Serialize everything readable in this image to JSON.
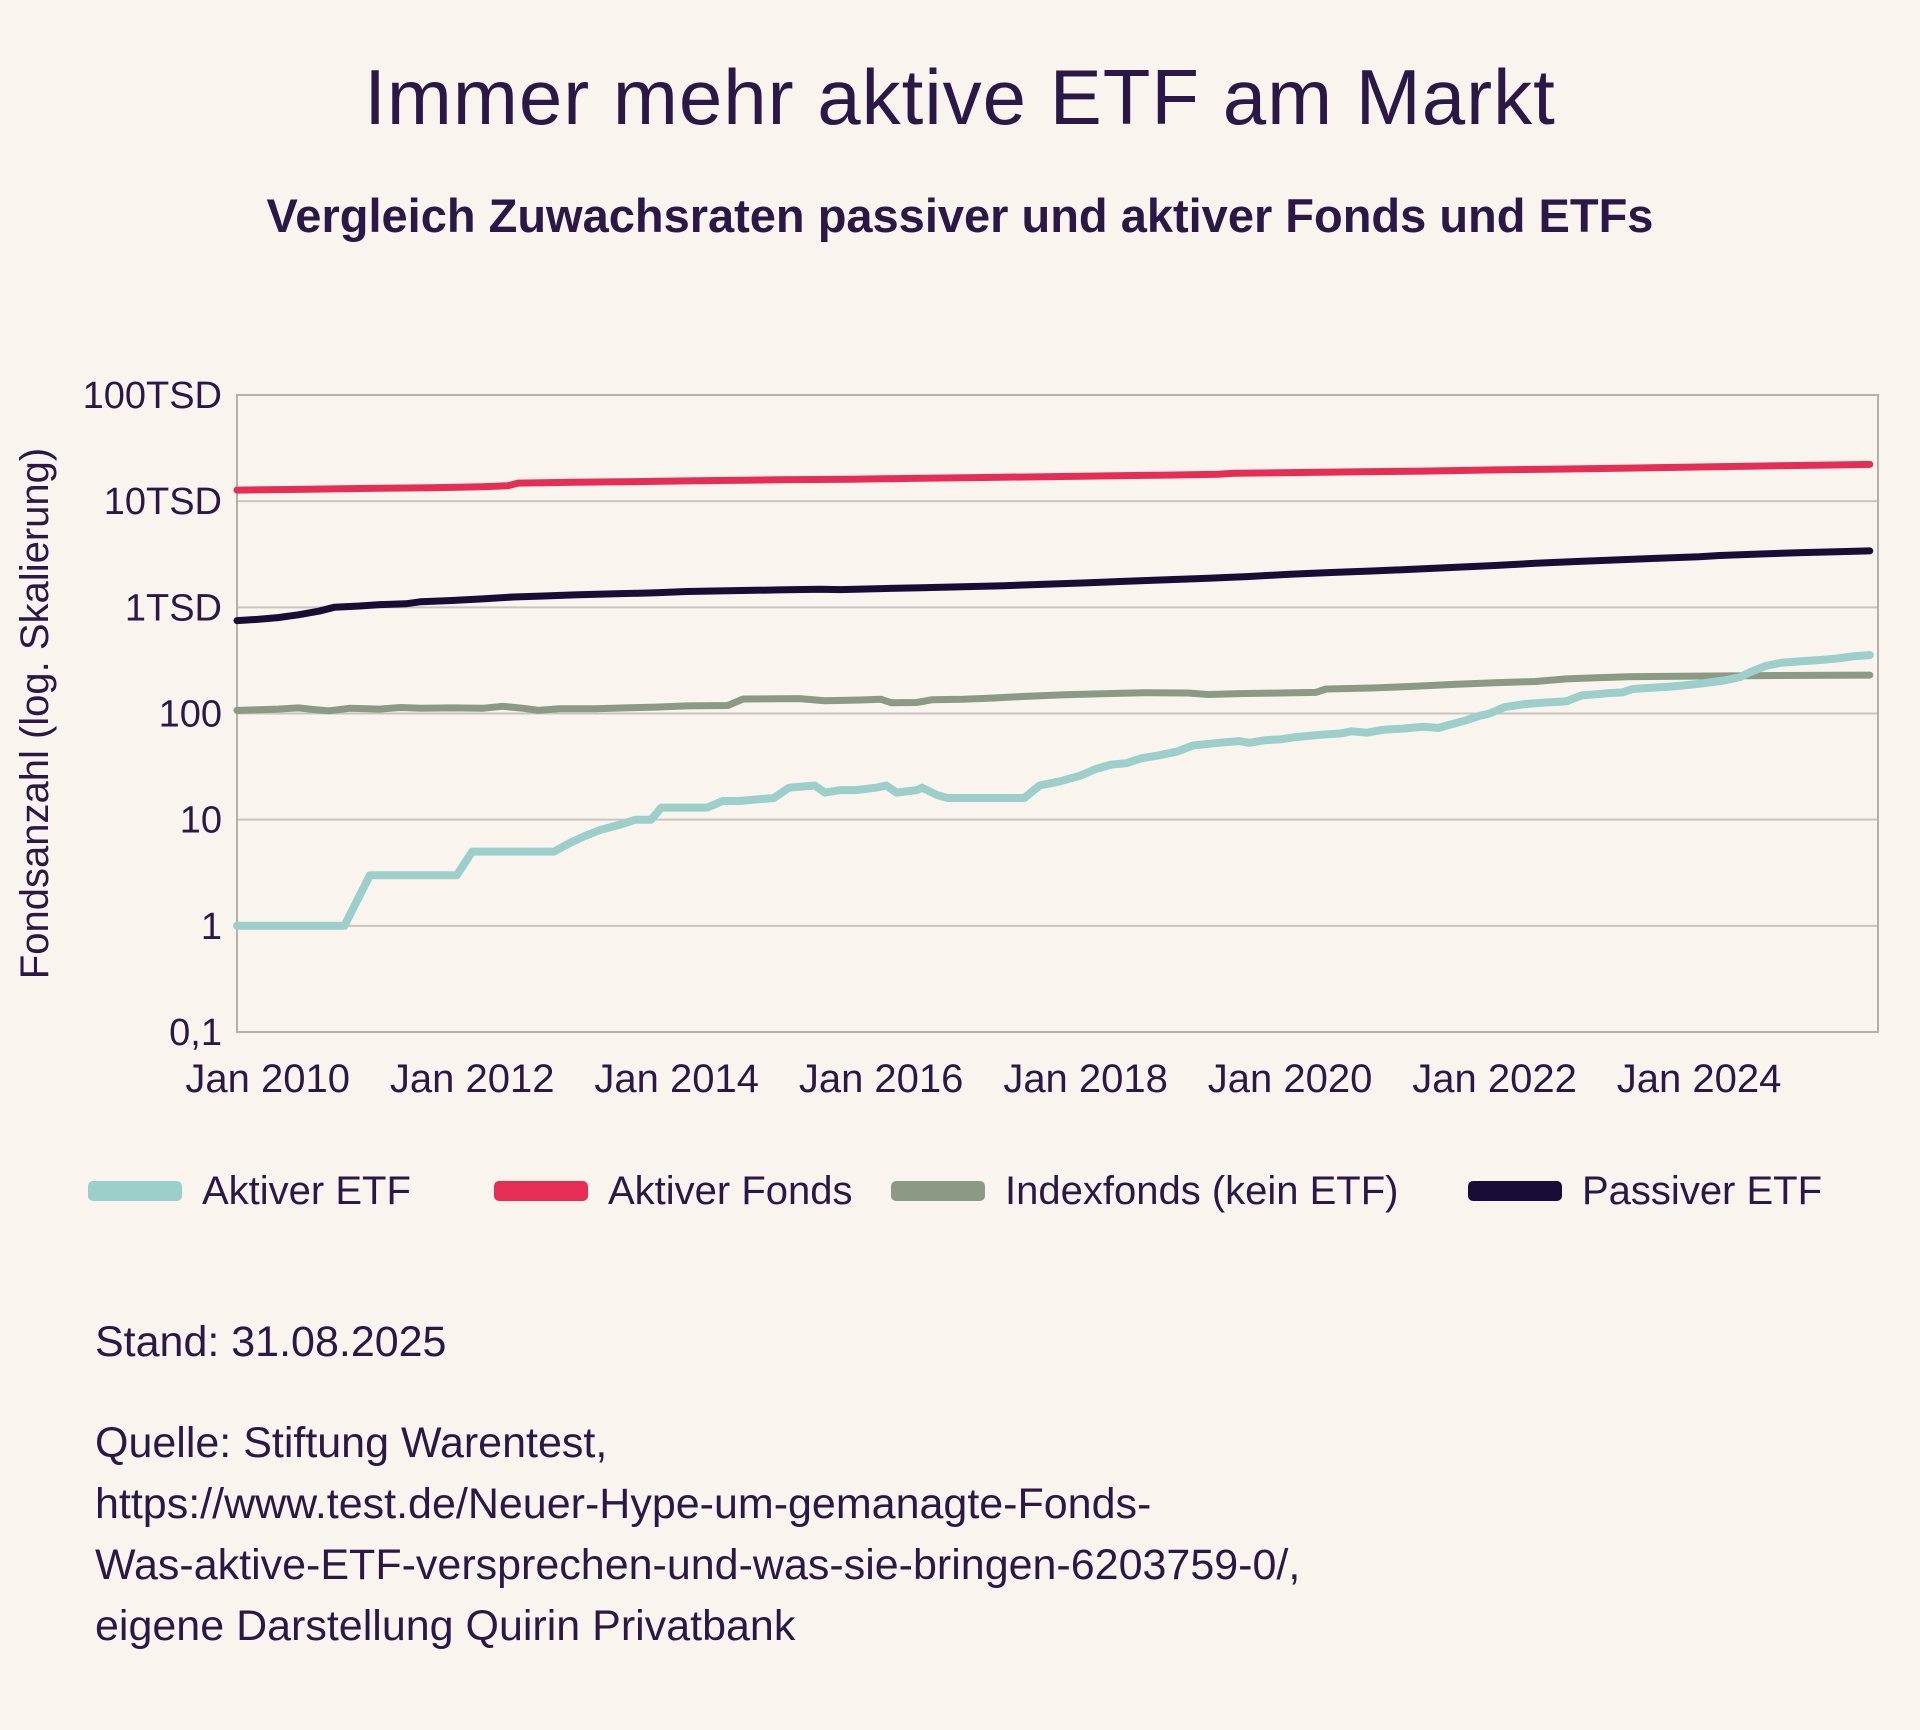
{
  "header": {
    "title": "Immer mehr aktive ETF am Markt",
    "subtitle": "Vergleich Zuwachsraten passiver und aktiver Fonds und ETFs"
  },
  "colors": {
    "background": "#faf4ee",
    "text": "#2a1947",
    "gridline": "#c9c4c1",
    "aktiver_etf": "#9ccfca",
    "aktiver_fonds": "#e62d55",
    "indexfonds": "#8b9a85",
    "passiver_etf": "#190d38"
  },
  "chart_data": {
    "type": "line",
    "title": "Immer mehr aktive ETF am Markt",
    "subtitle": "Vergleich Zuwachsraten passiver und aktiver Fonds und ETFs",
    "xlabel": "",
    "ylabel": "Fondsanzahl (log. Skalierung)",
    "y_scale": "log",
    "grid": true,
    "legend_position": "bottom",
    "x_domain": [
      2009.7,
      2025.75
    ],
    "y_domain": [
      0.1,
      100000
    ],
    "y_ticks": [
      {
        "label": "100TSD",
        "value": 100000
      },
      {
        "label": "10TSD",
        "value": 10000
      },
      {
        "label": "1TSD",
        "value": 1000
      },
      {
        "label": "100",
        "value": 100
      },
      {
        "label": "10",
        "value": 10
      },
      {
        "label": "1",
        "value": 1
      },
      {
        "label": "0,1",
        "value": 0.1
      }
    ],
    "x_ticks": [
      {
        "label": "Jan 2010",
        "year": 2010
      },
      {
        "label": "Jan 2012",
        "year": 2012
      },
      {
        "label": "Jan 2014",
        "year": 2014
      },
      {
        "label": "Jan 2016",
        "year": 2016
      },
      {
        "label": "Jan 2018",
        "year": 2018
      },
      {
        "label": "Jan 2020",
        "year": 2020
      },
      {
        "label": "Jan 2022",
        "year": 2022
      },
      {
        "label": "Jan 2024",
        "year": 2024
      }
    ],
    "series": [
      {
        "name": "Aktiver Fonds",
        "color": "#e62d55",
        "width": 7,
        "points": [
          [
            2009.7,
            12700
          ],
          [
            2010.3,
            12900
          ],
          [
            2011.0,
            13200
          ],
          [
            2011.6,
            13400
          ],
          [
            2012.1,
            13700
          ],
          [
            2012.35,
            14000
          ],
          [
            2012.45,
            14800
          ],
          [
            2013.0,
            15100
          ],
          [
            2013.6,
            15300
          ],
          [
            2014.2,
            15600
          ],
          [
            2015.0,
            15900
          ],
          [
            2015.7,
            16100
          ],
          [
            2016.3,
            16400
          ],
          [
            2017.0,
            16700
          ],
          [
            2017.6,
            17000
          ],
          [
            2018.2,
            17300
          ],
          [
            2018.8,
            17600
          ],
          [
            2019.3,
            17900
          ],
          [
            2019.45,
            18300
          ],
          [
            2020.0,
            18600
          ],
          [
            2020.7,
            18900
          ],
          [
            2021.3,
            19200
          ],
          [
            2022.0,
            19700
          ],
          [
            2022.7,
            20100
          ],
          [
            2023.3,
            20500
          ],
          [
            2024.0,
            21000
          ],
          [
            2024.7,
            21500
          ],
          [
            2025.3,
            21900
          ],
          [
            2025.67,
            22200
          ]
        ]
      },
      {
        "name": "Passiver ETF",
        "color": "#190d38",
        "width": 7,
        "points": [
          [
            2009.7,
            750
          ],
          [
            2009.9,
            770
          ],
          [
            2010.1,
            800
          ],
          [
            2010.3,
            850
          ],
          [
            2010.5,
            920
          ],
          [
            2010.65,
            1000
          ],
          [
            2010.9,
            1030
          ],
          [
            2011.1,
            1060
          ],
          [
            2011.35,
            1080
          ],
          [
            2011.5,
            1130
          ],
          [
            2011.8,
            1160
          ],
          [
            2012.1,
            1200
          ],
          [
            2012.4,
            1250
          ],
          [
            2012.7,
            1280
          ],
          [
            2013.0,
            1310
          ],
          [
            2013.4,
            1340
          ],
          [
            2013.8,
            1370
          ],
          [
            2014.1,
            1410
          ],
          [
            2014.5,
            1430
          ],
          [
            2015.0,
            1460
          ],
          [
            2015.4,
            1480
          ],
          [
            2015.6,
            1470
          ],
          [
            2016.0,
            1500
          ],
          [
            2016.4,
            1530
          ],
          [
            2016.8,
            1560
          ],
          [
            2017.2,
            1600
          ],
          [
            2017.6,
            1650
          ],
          [
            2018.0,
            1700
          ],
          [
            2018.4,
            1760
          ],
          [
            2018.8,
            1820
          ],
          [
            2019.2,
            1880
          ],
          [
            2019.6,
            1950
          ],
          [
            2020.0,
            2050
          ],
          [
            2020.4,
            2130
          ],
          [
            2020.8,
            2200
          ],
          [
            2021.2,
            2280
          ],
          [
            2021.6,
            2380
          ],
          [
            2022.0,
            2480
          ],
          [
            2022.4,
            2600
          ],
          [
            2022.8,
            2700
          ],
          [
            2023.2,
            2800
          ],
          [
            2023.6,
            2900
          ],
          [
            2024.0,
            3000
          ],
          [
            2024.2,
            3080
          ],
          [
            2024.6,
            3180
          ],
          [
            2025.0,
            3280
          ],
          [
            2025.3,
            3330
          ],
          [
            2025.67,
            3400
          ]
        ]
      },
      {
        "name": "Indexfonds (kein ETF)",
        "color": "#8b9a85",
        "width": 7,
        "points": [
          [
            2009.7,
            107
          ],
          [
            2010.1,
            110
          ],
          [
            2010.3,
            113
          ],
          [
            2010.45,
            109
          ],
          [
            2010.6,
            106
          ],
          [
            2010.8,
            112
          ],
          [
            2011.1,
            110
          ],
          [
            2011.3,
            114
          ],
          [
            2011.5,
            112
          ],
          [
            2011.8,
            113
          ],
          [
            2012.1,
            112
          ],
          [
            2012.3,
            117
          ],
          [
            2012.5,
            112
          ],
          [
            2012.65,
            107
          ],
          [
            2012.85,
            111
          ],
          [
            2013.2,
            111
          ],
          [
            2013.5,
            113
          ],
          [
            2013.8,
            115
          ],
          [
            2014.1,
            118
          ],
          [
            2014.5,
            119
          ],
          [
            2014.65,
            137
          ],
          [
            2015.2,
            138
          ],
          [
            2015.45,
            132
          ],
          [
            2015.8,
            134
          ],
          [
            2016.0,
            136
          ],
          [
            2016.1,
            126
          ],
          [
            2016.35,
            127
          ],
          [
            2016.5,
            135
          ],
          [
            2016.8,
            136
          ],
          [
            2017.1,
            140
          ],
          [
            2017.4,
            145
          ],
          [
            2017.8,
            150
          ],
          [
            2018.2,
            154
          ],
          [
            2018.6,
            157
          ],
          [
            2019.0,
            156
          ],
          [
            2019.2,
            151
          ],
          [
            2019.5,
            154
          ],
          [
            2019.9,
            156
          ],
          [
            2020.25,
            158
          ],
          [
            2020.35,
            170
          ],
          [
            2020.8,
            174
          ],
          [
            2021.2,
            180
          ],
          [
            2021.6,
            188
          ],
          [
            2022.0,
            195
          ],
          [
            2022.4,
            200
          ],
          [
            2022.7,
            212
          ],
          [
            2023.0,
            217
          ],
          [
            2023.3,
            222
          ],
          [
            2023.8,
            224
          ],
          [
            2024.3,
            226
          ],
          [
            2024.8,
            228
          ],
          [
            2025.3,
            229
          ],
          [
            2025.67,
            230
          ]
        ]
      },
      {
        "name": "Aktiver ETF",
        "color": "#9ccfca",
        "width": 8,
        "points": [
          [
            2009.7,
            1
          ],
          [
            2010.75,
            1
          ],
          [
            2011.0,
            3
          ],
          [
            2011.85,
            3
          ],
          [
            2012.0,
            5
          ],
          [
            2012.8,
            5
          ],
          [
            2012.95,
            6
          ],
          [
            2013.1,
            7
          ],
          [
            2013.25,
            8
          ],
          [
            2013.45,
            9
          ],
          [
            2013.6,
            10
          ],
          [
            2013.75,
            10
          ],
          [
            2013.85,
            13
          ],
          [
            2014.3,
            13
          ],
          [
            2014.45,
            15
          ],
          [
            2014.6,
            15
          ],
          [
            2014.95,
            16
          ],
          [
            2015.1,
            20
          ],
          [
            2015.35,
            21
          ],
          [
            2015.45,
            18
          ],
          [
            2015.6,
            19
          ],
          [
            2015.75,
            19
          ],
          [
            2015.95,
            20
          ],
          [
            2016.05,
            21
          ],
          [
            2016.15,
            18
          ],
          [
            2016.35,
            19
          ],
          [
            2016.4,
            20
          ],
          [
            2016.55,
            17
          ],
          [
            2016.65,
            16
          ],
          [
            2017.4,
            16
          ],
          [
            2017.55,
            21
          ],
          [
            2017.75,
            23
          ],
          [
            2017.95,
            26
          ],
          [
            2018.1,
            30
          ],
          [
            2018.25,
            33
          ],
          [
            2018.4,
            34
          ],
          [
            2018.55,
            38
          ],
          [
            2018.7,
            40
          ],
          [
            2018.9,
            44
          ],
          [
            2019.05,
            50
          ],
          [
            2019.3,
            53
          ],
          [
            2019.5,
            55
          ],
          [
            2019.6,
            53
          ],
          [
            2019.75,
            56
          ],
          [
            2019.9,
            57
          ],
          [
            2020.05,
            60
          ],
          [
            2020.3,
            63
          ],
          [
            2020.5,
            65
          ],
          [
            2020.6,
            68
          ],
          [
            2020.75,
            66
          ],
          [
            2020.9,
            70
          ],
          [
            2021.1,
            72
          ],
          [
            2021.3,
            75
          ],
          [
            2021.45,
            73
          ],
          [
            2021.55,
            78
          ],
          [
            2021.7,
            85
          ],
          [
            2021.85,
            95
          ],
          [
            2021.95,
            100
          ],
          [
            2022.1,
            115
          ],
          [
            2022.3,
            123
          ],
          [
            2022.5,
            127
          ],
          [
            2022.7,
            130
          ],
          [
            2022.85,
            148
          ],
          [
            2023.1,
            155
          ],
          [
            2023.25,
            158
          ],
          [
            2023.35,
            170
          ],
          [
            2023.55,
            175
          ],
          [
            2023.75,
            180
          ],
          [
            2023.95,
            188
          ],
          [
            2024.1,
            196
          ],
          [
            2024.25,
            205
          ],
          [
            2024.4,
            220
          ],
          [
            2024.5,
            245
          ],
          [
            2024.65,
            280
          ],
          [
            2024.8,
            300
          ],
          [
            2025.0,
            310
          ],
          [
            2025.2,
            320
          ],
          [
            2025.35,
            330
          ],
          [
            2025.5,
            345
          ],
          [
            2025.67,
            355
          ]
        ]
      }
    ]
  },
  "legend": {
    "items": [
      {
        "label": "Aktiver ETF",
        "color": "#9ccfca"
      },
      {
        "label": "Aktiver Fonds",
        "color": "#e62d55"
      },
      {
        "label": "Indexfonds (kein ETF)",
        "color": "#8b9a85"
      },
      {
        "label": "Passiver ETF",
        "color": "#190d38"
      }
    ]
  },
  "footer": {
    "stand": "Stand: 31.08.2025",
    "source_lines": [
      "Quelle: Stiftung Warentest,",
      "https://www.test.de/Neuer-Hype-um-gemanagte-Fonds-",
      "Was-aktive-ETF-versprechen-und-was-sie-bringen-6203759-0/,",
      "eigene Darstellung Quirin Privatbank"
    ]
  }
}
